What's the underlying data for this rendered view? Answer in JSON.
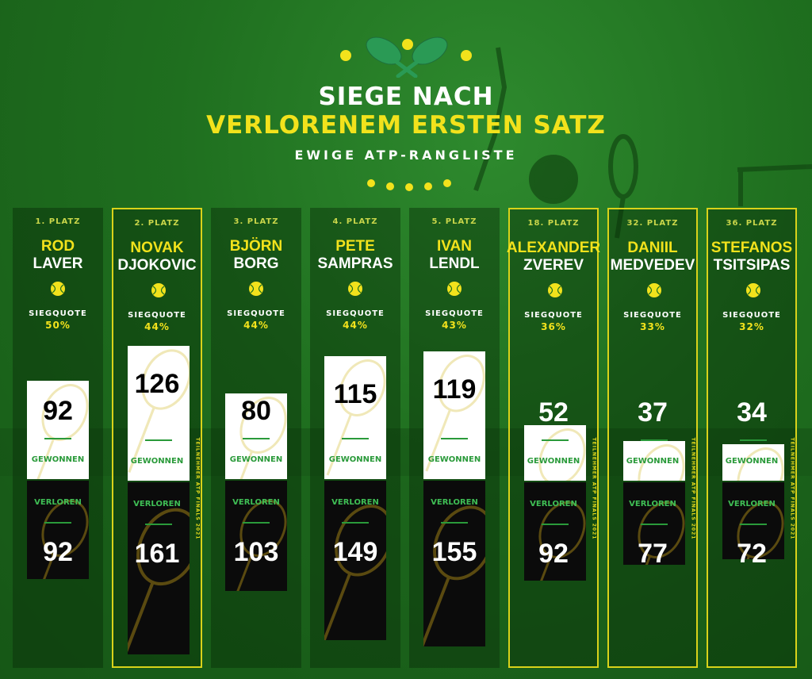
{
  "header": {
    "title_line1": "SIEGE NACH",
    "title_line2": "VERLORENEM ERSTEN SATZ",
    "subtitle": "EWIGE ATP-RANGLISTE"
  },
  "labels": {
    "quote": "SIEGQUOTE",
    "won": "GEWONNEN",
    "lost": "VERLOREN",
    "finals_note": "TEILNEHMER ATP FINALS 2021"
  },
  "colors": {
    "background": "#1f6f1f",
    "accent_yellow": "#f2e21c",
    "won_bar": "#ffffff",
    "lost_bar": "#0b0b0b",
    "finalist_border": "#d9d21a",
    "divider_green": "#2a9a3a"
  },
  "chart_data": {
    "type": "bar",
    "categories": [
      "ROD LAVER",
      "NOVAK DJOKOVIC",
      "BJÖRN BORG",
      "PETE SAMPRAS",
      "IVAN LENDL",
      "ALEXANDER ZVEREV",
      "DANIIL MEDVEDEV",
      "STEFANOS TSITSIPAS"
    ],
    "series": [
      {
        "name": "GEWONNEN",
        "values": [
          92,
          126,
          80,
          115,
          119,
          52,
          37,
          34
        ]
      },
      {
        "name": "VERLOREN",
        "values": [
          92,
          161,
          103,
          149,
          155,
          92,
          77,
          72
        ]
      }
    ]
  },
  "players": [
    {
      "rank": "1. PLATZ",
      "first": "ROD",
      "last": "LAVER",
      "quote": "50%",
      "won": "92",
      "lost": "92",
      "finalist": false
    },
    {
      "rank": "2. PLATZ",
      "first": "NOVAK",
      "last": "DJOKOVIC",
      "quote": "44%",
      "won": "126",
      "lost": "161",
      "finalist": true
    },
    {
      "rank": "3. PLATZ",
      "first": "BJÖRN",
      "last": "BORG",
      "quote": "44%",
      "won": "80",
      "lost": "103",
      "finalist": false
    },
    {
      "rank": "4. PLATZ",
      "first": "PETE",
      "last": "SAMPRAS",
      "quote": "44%",
      "won": "115",
      "lost": "149",
      "finalist": false
    },
    {
      "rank": "5. PLATZ",
      "first": "IVAN",
      "last": "LENDL",
      "quote": "43%",
      "won": "119",
      "lost": "155",
      "finalist": false
    },
    {
      "rank": "18. PLATZ",
      "first": "ALEXANDER",
      "last": "ZVEREV",
      "quote": "36%",
      "won": "52",
      "lost": "92",
      "finalist": true
    },
    {
      "rank": "32. PLATZ",
      "first": "DANIIL",
      "last": "MEDVEDEV",
      "quote": "33%",
      "won": "37",
      "lost": "77",
      "finalist": true
    },
    {
      "rank": "36. PLATZ",
      "first": "STEFANOS",
      "last": "TSITSIPAS",
      "quote": "32%",
      "won": "34",
      "lost": "72",
      "finalist": true
    }
  ]
}
